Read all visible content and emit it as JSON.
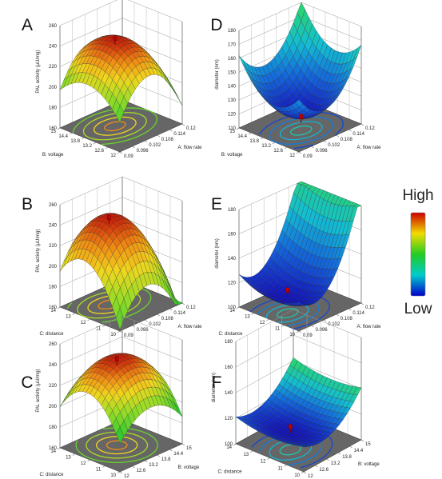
{
  "chart_data": [
    {
      "panel": "A",
      "type": "surface",
      "zlabel": "PAL activity (μU/mg)",
      "xlabel": "A: flow rate",
      "ylabel": "B: voltage",
      "xticks": [
        "0.09",
        "0.096",
        "0.102",
        "0.108",
        "0.114",
        "0.12"
      ],
      "yticks": [
        "12",
        "12.6",
        "13.2",
        "13.8",
        "14.4",
        "15"
      ],
      "zticks": [
        "160",
        "180",
        "200",
        "220",
        "240",
        "260"
      ],
      "zlim": [
        160,
        260
      ],
      "xlim": [
        0.09,
        0.12
      ],
      "ylim": [
        12,
        15
      ],
      "surface": {
        "peak": 246,
        "corner_low": 208,
        "corner_high": 236
      },
      "design_point": 246,
      "contour_colormap": "warm"
    },
    {
      "panel": "B",
      "type": "surface",
      "zlabel": "PAL activity (μU/mg)",
      "xlabel": "A: flow rate",
      "ylabel": "C: distance",
      "xticks": [
        "0.09",
        "0.096",
        "0.102",
        "0.108",
        "0.114",
        "0.12"
      ],
      "yticks": [
        "10",
        "11",
        "12",
        "13",
        "14"
      ],
      "zticks": [
        "160",
        "180",
        "200",
        "220",
        "240",
        "260"
      ],
      "zlim": [
        160,
        260
      ],
      "xlim": [
        0.09,
        0.12
      ],
      "ylim": [
        10,
        14
      ],
      "surface": {
        "peak": 247,
        "corner_low": 190,
        "corner_high": 240
      },
      "design_point": 245,
      "contour_colormap": "warm"
    },
    {
      "panel": "C",
      "type": "surface",
      "zlabel": "PAL activity (μU/mg)",
      "xlabel": "B: voltage",
      "ylabel": "C: distance",
      "xticks": [
        "12",
        "12.6",
        "13.2",
        "13.8",
        "14.4",
        "15"
      ],
      "yticks": [
        "10",
        "11",
        "12",
        "13",
        "14"
      ],
      "zticks": [
        "160",
        "180",
        "200",
        "220",
        "240",
        "260"
      ],
      "zlim": [
        160,
        260
      ],
      "xlim": [
        12,
        15
      ],
      "ylim": [
        10,
        14
      ],
      "surface": {
        "peak": 245,
        "corner_low": 212,
        "corner_high": 228
      },
      "design_point": 243,
      "contour_colormap": "warm"
    },
    {
      "panel": "D",
      "type": "surface",
      "zlabel": "diameter (nm)",
      "xlabel": "A: flow rate",
      "ylabel": "B: voltage",
      "xticks": [
        "0.09",
        "0.096",
        "0.102",
        "0.108",
        "0.114",
        "0.12"
      ],
      "yticks": [
        "12",
        "12.6",
        "13.2",
        "13.8",
        "14.4",
        "15"
      ],
      "zticks": [
        "110",
        "120",
        "130",
        "140",
        "150",
        "160",
        "170",
        "180"
      ],
      "zlim": [
        110,
        180
      ],
      "xlim": [
        0.09,
        0.12
      ],
      "ylim": [
        12,
        15
      ],
      "surface": {
        "min": 121,
        "corner_low": 126,
        "corner_high": 151
      },
      "design_point": 120,
      "contour_colormap": "cool"
    },
    {
      "panel": "E",
      "type": "surface",
      "zlabel": "diameter (nm)",
      "xlabel": "A: flow rate",
      "ylabel": "C: distance",
      "xticks": [
        "0.09",
        "0.096",
        "0.102",
        "0.108",
        "0.114",
        "0.12"
      ],
      "yticks": [
        "10",
        "11",
        "12",
        "13",
        "14"
      ],
      "zticks": [
        "100",
        "120",
        "140",
        "160",
        "180"
      ],
      "zlim": [
        100,
        180
      ],
      "xlim": [
        0.09,
        0.12
      ],
      "ylim": [
        10,
        14
      ],
      "surface": {
        "min": 112,
        "corner_low": 110,
        "corner_high": 148
      },
      "design_point": 119,
      "contour_colormap": "cool"
    },
    {
      "panel": "F",
      "type": "surface",
      "zlabel": "diameter (nm)",
      "xlabel": "B: voltage",
      "ylabel": "C: distance",
      "xticks": [
        "12",
        "12.6",
        "13.2",
        "13.8",
        "14.4",
        "15"
      ],
      "yticks": [
        "10",
        "11",
        "12",
        "13",
        "14"
      ],
      "zticks": [
        "100",
        "120",
        "140",
        "160",
        "180"
      ],
      "zlim": [
        100,
        180
      ],
      "xlim": [
        12,
        15
      ],
      "ylim": [
        10,
        14
      ],
      "surface": {
        "min": 113,
        "corner_low": 114,
        "corner_high": 128
      },
      "design_point": 118,
      "contour_colormap": "cool"
    }
  ],
  "colorbar": {
    "high_label": "High",
    "low_label": "Low",
    "colors": [
      "#cc0000",
      "#f2dc00",
      "#22cc22",
      "#00cccc",
      "#0000cc"
    ]
  }
}
